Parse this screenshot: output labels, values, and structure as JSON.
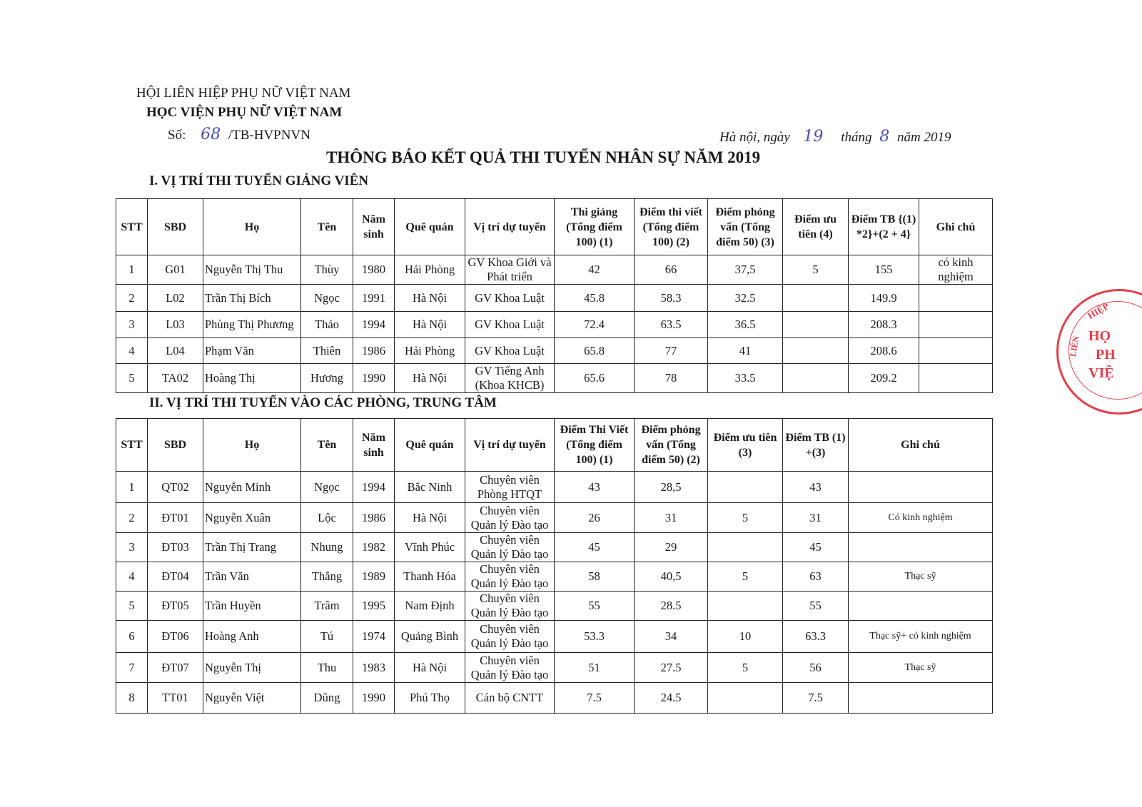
{
  "header": {
    "org_parent": "HỘI LIÊN HIỆP PHỤ NỮ VIỆT NAM",
    "org": "HỌC VIỆN PHỤ NỮ VIỆT NAM",
    "number_label": "Số:",
    "number_handwritten": "68",
    "number_suffix": "/TB-HVPNVN",
    "date_prefix": "Hà nội, ngày",
    "day": "19",
    "month_label": "tháng",
    "month": "8",
    "year_text": "năm 2019",
    "title": "THÔNG BÁO KẾT QUẢ THI TUYỂN NHÂN SỰ NĂM 2019"
  },
  "section1": {
    "heading": "I. VỊ TRÍ THI TUYỂN GIẢNG VIÊN",
    "columns": [
      "STT",
      "SBD",
      "Họ",
      "Tên",
      "Năm sinh",
      "Quê quán",
      "Vị trí dự tuyển",
      "Thi giảng (Tổng điểm 100) (1)",
      "Điểm thi viết (Tổng điểm 100) (2)",
      "Điểm phỏng vấn (Tổng điểm 50) (3)",
      "Điểm ưu tiên (4)",
      "Điểm TB {(1) *2}+(2 + 4}",
      "Ghi chú"
    ],
    "rows": [
      [
        "1",
        "G01",
        "Nguyễn Thị Thu",
        "Thùy",
        "1980",
        "Hải Phòng",
        "GV Khoa Giới và Phát triển",
        "42",
        "66",
        "37,5",
        "5",
        "155",
        "có kinh nghiệm"
      ],
      [
        "2",
        "L02",
        "Trần Thị Bích",
        "Ngọc",
        "1991",
        "Hà Nội",
        "GV Khoa Luật",
        "45.8",
        "58.3",
        "32.5",
        "",
        "149.9",
        ""
      ],
      [
        "3",
        "L03",
        "Phùng Thị Phương",
        "Thảo",
        "1994",
        "Hà Nội",
        "GV Khoa Luật",
        "72.4",
        "63.5",
        "36.5",
        "",
        "208.3",
        ""
      ],
      [
        "4",
        "L04",
        "Phạm Văn",
        "Thiên",
        "1986",
        "Hải Phòng",
        "GV Khoa Luật",
        "65.8",
        "77",
        "41",
        "",
        "208.6",
        ""
      ],
      [
        "5",
        "TA02",
        "Hoàng Thị",
        "Hương",
        "1990",
        "Hà Nội",
        "GV Tiếng Anh (Khoa KHCB)",
        "65.6",
        "78",
        "33.5",
        "",
        "209.2",
        ""
      ]
    ]
  },
  "section2": {
    "heading": "II. VỊ TRÍ THI TUYỂN VÀO CÁC PHÒNG, TRUNG TÂM",
    "columns": [
      "STT",
      "SBD",
      "Họ",
      "Tên",
      "Năm sinh",
      "Quê quán",
      "Vị trí dự tuyển",
      "Điểm Thi Viết (Tổng điểm 100) (1)",
      "Điểm phỏng vấn (Tổng điểm 50) (2)",
      "Điểm ưu tiên (3)",
      "Điểm TB (1) +(3)",
      "Ghi chú"
    ],
    "rows": [
      [
        "1",
        "QT02",
        "Nguyễn Minh",
        "Ngọc",
        "1994",
        "Bắc Ninh",
        "Chuyên viên Phòng HTQT",
        "43",
        "28,5",
        "",
        "43",
        ""
      ],
      [
        "2",
        "ĐT01",
        "Nguyễn Xuân",
        "Lộc",
        "1986",
        "Hà Nội",
        "Chuyên viên Quản lý Đào tạo",
        "26",
        "31",
        "5",
        "31",
        "Có kinh nghiệm"
      ],
      [
        "3",
        "ĐT03",
        "Trần Thị Trang",
        "Nhung",
        "1982",
        "Vĩnh Phúc",
        "Chuyên viên Quản lý Đào tạo",
        "45",
        "29",
        "",
        "45",
        ""
      ],
      [
        "4",
        "ĐT04",
        "Trần Văn",
        "Thắng",
        "1989",
        "Thanh Hóa",
        "Chuyên viên Quản lý Đào tạo",
        "58",
        "40,5",
        "5",
        "63",
        "Thạc sỹ"
      ],
      [
        "5",
        "ĐT05",
        "Trần Huyền",
        "Trâm",
        "1995",
        "Nam Định",
        "Chuyên viên Quản lý Đào tạo",
        "55",
        "28.5",
        "",
        "55",
        ""
      ],
      [
        "6",
        "ĐT06",
        "Hoàng Anh",
        "Tú",
        "1974",
        "Quảng Bình",
        "Chuyên viên Quản lý Đào tạo",
        "53.3",
        "34",
        "10",
        "63.3",
        "Thạc sỹ+ có kinh nghiệm"
      ],
      [
        "7",
        "ĐT07",
        "Nguyễn Thị",
        "Thu",
        "1983",
        "Hà Nội",
        "Chuyên viên Quản lý Đào tạo",
        "51",
        "27.5",
        "5",
        "56",
        "Thạc sỹ"
      ],
      [
        "8",
        "TT01",
        "Nguyễn Việt",
        "Dũng",
        "1990",
        "Phú Thọ",
        "Cán bộ CNTT",
        "7.5",
        "24.5",
        "",
        "7.5",
        ""
      ]
    ]
  },
  "stamp": {
    "text": "LIÊN HIỆP HỌC PH VIỆ",
    "color": "#e0404c"
  }
}
